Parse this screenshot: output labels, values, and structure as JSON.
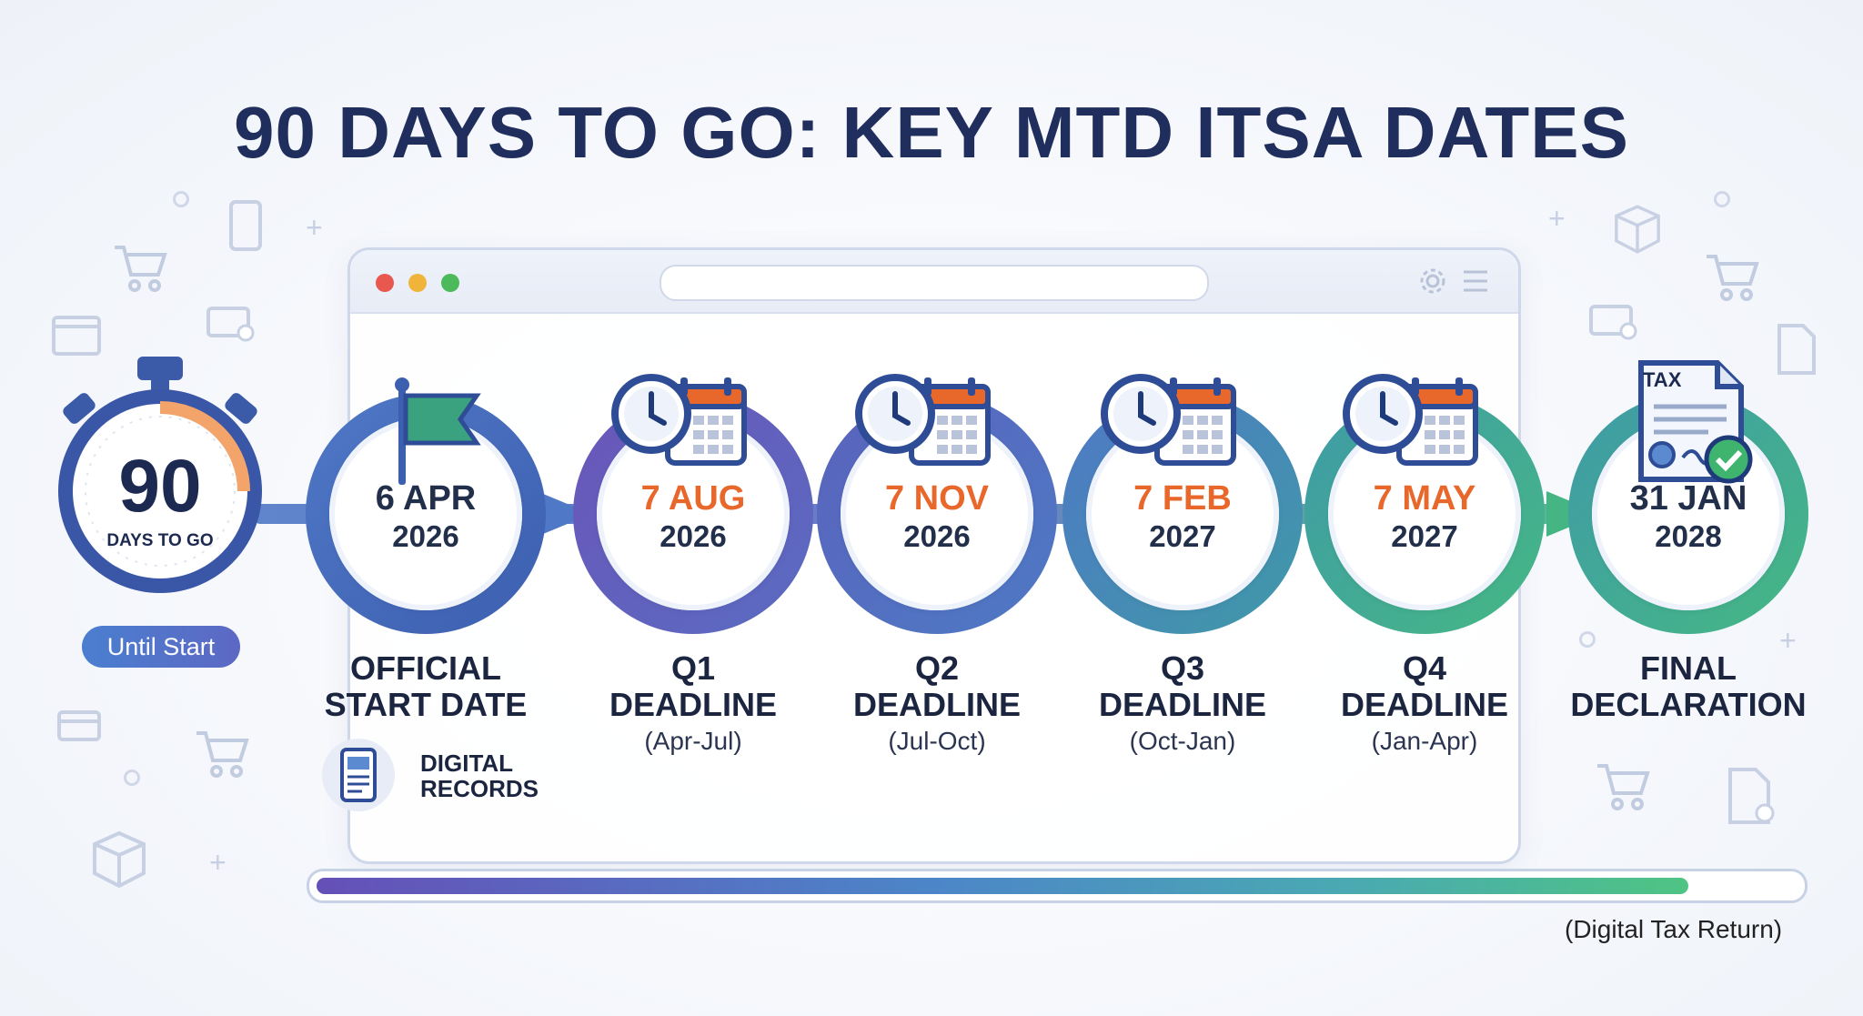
{
  "title": "90 DAYS TO GO: KEY MTD ITSA DATES",
  "countdown": {
    "number": "90",
    "caption": "DAYS TO GO",
    "pill_label": "Until Start"
  },
  "milestones": [
    {
      "date_line1": "6 APR",
      "date_line2": "2026",
      "label_line1": "OFFICIAL",
      "label_line2": "START DATE",
      "sub": "",
      "icon": "flag-icon",
      "date_color": "#222f4a"
    },
    {
      "date_line1": "7 AUG",
      "date_line2": "2026",
      "label_line1": "Q1",
      "label_line2": "DEADLINE",
      "sub": "(Apr-Jul)",
      "icon": "clock-calendar-icon",
      "date_color": "#e8672a"
    },
    {
      "date_line1": "7 NOV",
      "date_line2": "2026",
      "label_line1": "Q2",
      "label_line2": "DEADLINE",
      "sub": "(Jul-Oct)",
      "icon": "clock-calendar-icon",
      "date_color": "#e8672a"
    },
    {
      "date_line1": "7 FEB",
      "date_line2": "2027",
      "label_line1": "Q3",
      "label_line2": "DEADLINE",
      "sub": "(Oct-Jan)",
      "icon": "clock-calendar-icon",
      "date_color": "#e8672a"
    },
    {
      "date_line1": "7 MAY",
      "date_line2": "2027",
      "label_line1": "Q4",
      "label_line2": "DEADLINE",
      "sub": "(Jan-Apr)",
      "icon": "clock-calendar-icon",
      "date_color": "#e8672a"
    },
    {
      "date_line1": "31 JAN",
      "date_line2": "2028",
      "label_line1": "FINAL",
      "label_line2": "DECLARATION",
      "sub": "",
      "icon": "tax-document-icon",
      "date_color": "#222f4a"
    }
  ],
  "digital_records": {
    "line1": "DIGITAL",
    "line2": "RECORDS",
    "icon": "tablet-document-icon"
  },
  "tax_doc_label": "TAX",
  "progress": {
    "value": 0.93
  },
  "progress_caption": "(Digital Tax Return)",
  "colors": {
    "title": "#1f2e5c",
    "accent_orange": "#e8672a",
    "ring_blue": "#4f78c6",
    "ring_purple": "#6a55b8",
    "ring_teal": "#3f9aa7",
    "ring_green": "#46b884"
  }
}
